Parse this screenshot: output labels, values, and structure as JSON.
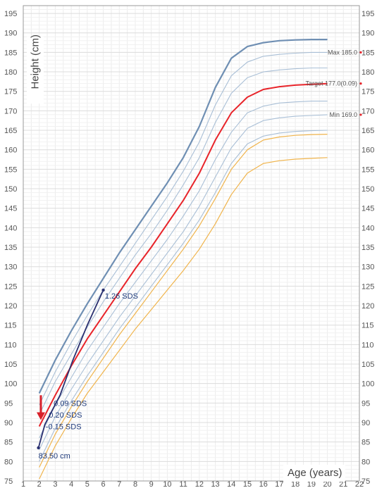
{
  "chart_data": {
    "type": "line",
    "title": "",
    "xlabel": "Age (years)",
    "ylabel": "Height (cm)",
    "xlim": [
      1,
      22
    ],
    "ylim": [
      75,
      197
    ],
    "x_ticks": [
      1,
      2,
      3,
      4,
      5,
      6,
      7,
      8,
      9,
      10,
      11,
      12,
      13,
      14,
      15,
      16,
      17,
      18,
      19,
      20,
      21,
      22
    ],
    "y_ticks": [
      75,
      80,
      85,
      90,
      95,
      100,
      105,
      110,
      115,
      120,
      125,
      130,
      135,
      140,
      145,
      150,
      155,
      160,
      165,
      170,
      175,
      180,
      185,
      190,
      195
    ],
    "grid": true,
    "colors": {
      "upper_percentile": "#6f8fb3",
      "mid_percentile": "#a9bfd6",
      "target": "#e8242a",
      "lower_percentile": "#f0b44c",
      "patient": "#2a3070"
    },
    "series": [
      {
        "name": "",
        "role": "top",
        "x": [
          2,
          3,
          4,
          5,
          6,
          7,
          8,
          9,
          10,
          11,
          12,
          13,
          14,
          15,
          16,
          17,
          18,
          19,
          20
        ],
        "y": [
          97.5,
          106,
          113.5,
          120.5,
          127,
          133.5,
          139.5,
          145.5,
          151.5,
          158,
          166,
          176,
          183.5,
          186.5,
          187.5,
          188,
          188.2,
          188.3,
          188.3
        ]
      },
      {
        "name": "",
        "role": "mid",
        "x": [
          2,
          3,
          4,
          5,
          6,
          7,
          8,
          9,
          10,
          11,
          12,
          13,
          14,
          15,
          16,
          17,
          18,
          19,
          20
        ],
        "y": [
          94.5,
          103,
          110.5,
          117.5,
          124,
          130,
          136,
          142,
          148,
          154.5,
          162,
          171.5,
          179,
          182.5,
          184,
          184.5,
          184.8,
          185,
          185
        ]
      },
      {
        "name": "",
        "role": "mid",
        "x": [
          2,
          3,
          4,
          5,
          6,
          7,
          8,
          9,
          10,
          11,
          12,
          13,
          14,
          15,
          16,
          17,
          18,
          19,
          20
        ],
        "y": [
          92,
          100.5,
          107.5,
          114.5,
          121,
          127,
          133,
          138.5,
          144.5,
          151,
          158,
          167,
          174.5,
          178.5,
          180,
          180.5,
          180.8,
          181,
          181
        ]
      },
      {
        "name": "",
        "role": "target",
        "x": [
          2,
          3,
          4,
          5,
          6,
          7,
          8,
          9,
          10,
          11,
          12,
          13,
          14,
          15,
          16,
          17,
          18,
          19,
          20
        ],
        "y": [
          89,
          97,
          104.5,
          111.5,
          117.5,
          123.5,
          129.5,
          135,
          141,
          147,
          154,
          162.5,
          169.5,
          173.5,
          175.5,
          176.2,
          176.6,
          176.8,
          177
        ]
      },
      {
        "name": "",
        "role": "mid",
        "x": [
          2,
          3,
          4,
          5,
          6,
          7,
          8,
          9,
          10,
          11,
          12,
          13,
          14,
          15,
          16,
          17,
          18,
          19,
          20
        ],
        "y": [
          86,
          94.5,
          101.5,
          108.5,
          114.5,
          120.5,
          126,
          131.5,
          137,
          143,
          149.5,
          157.5,
          164.5,
          169.5,
          171.2,
          172,
          172.3,
          172.5,
          172.5
        ]
      },
      {
        "name": "",
        "role": "mid",
        "x": [
          2,
          3,
          4,
          5,
          6,
          7,
          8,
          9,
          10,
          11,
          12,
          13,
          14,
          15,
          16,
          17,
          18,
          19,
          20
        ],
        "y": [
          83,
          91.5,
          98.5,
          105,
          111,
          117,
          122.5,
          128,
          133.5,
          139,
          145.5,
          153,
          160.5,
          165.5,
          167.5,
          168.2,
          168.6,
          168.8,
          169
        ]
      },
      {
        "name": "",
        "role": "mid",
        "x": [
          2,
          3,
          4,
          5,
          6,
          7,
          8,
          9,
          10,
          11,
          12,
          13,
          14,
          15,
          16,
          17,
          18,
          19,
          20
        ],
        "y": [
          80,
          88.5,
          95.5,
          102,
          108,
          114,
          119.5,
          125,
          130.5,
          136,
          142,
          149,
          156.5,
          161.5,
          163.5,
          164.3,
          164.7,
          164.9,
          165
        ]
      },
      {
        "name": "",
        "role": "lower",
        "x": [
          2,
          3,
          4,
          5,
          6,
          7,
          8,
          9,
          10,
          11,
          12,
          13,
          14,
          15,
          16,
          17,
          18,
          19,
          20
        ],
        "y": [
          78.5,
          87,
          94,
          100.5,
          106.5,
          112.5,
          118,
          123.5,
          129,
          134.5,
          140.5,
          147.5,
          155,
          160,
          162.5,
          163.3,
          163.7,
          163.9,
          164
        ]
      },
      {
        "name": "",
        "role": "lower",
        "x": [
          2,
          3,
          4,
          5,
          6,
          7,
          8,
          9,
          10,
          11,
          12,
          13,
          14,
          15,
          16,
          17,
          18,
          19,
          20
        ],
        "y": [
          75.5,
          84,
          91,
          97.5,
          103,
          108.5,
          114,
          119,
          124,
          129,
          134.5,
          141,
          148.5,
          154,
          156.5,
          157.2,
          157.6,
          157.8,
          158
        ]
      },
      {
        "name": "",
        "role": "patient",
        "x": [
          1.95,
          2.35,
          3.3,
          4.1,
          5.0,
          6.0
        ],
        "y": [
          83.5,
          89.5,
          97,
          106,
          115,
          124
        ]
      }
    ],
    "arrow": {
      "x": 2.1,
      "y_from": 97,
      "y_to": 91,
      "color": "#d8202a"
    },
    "annotations": [
      {
        "text": "1.26 SDS",
        "x": 6.1,
        "y": 122.5
      },
      {
        "text": "0.09 SDS",
        "x": 2.9,
        "y": 95
      },
      {
        "text": "0.20  SDS",
        "x": 2.6,
        "y": 92
      },
      {
        "text": "-0.15  SDS",
        "x": 2.4,
        "y": 89
      },
      {
        "text": "83.50  cm",
        "x": 1.95,
        "y": 81.5
      }
    ],
    "reference_labels": [
      {
        "text": "Max 185.0",
        "y": 185
      },
      {
        "text": "Target 177.0(0.09)",
        "y": 177
      },
      {
        "text": "Min 169.0",
        "y": 169
      }
    ]
  }
}
